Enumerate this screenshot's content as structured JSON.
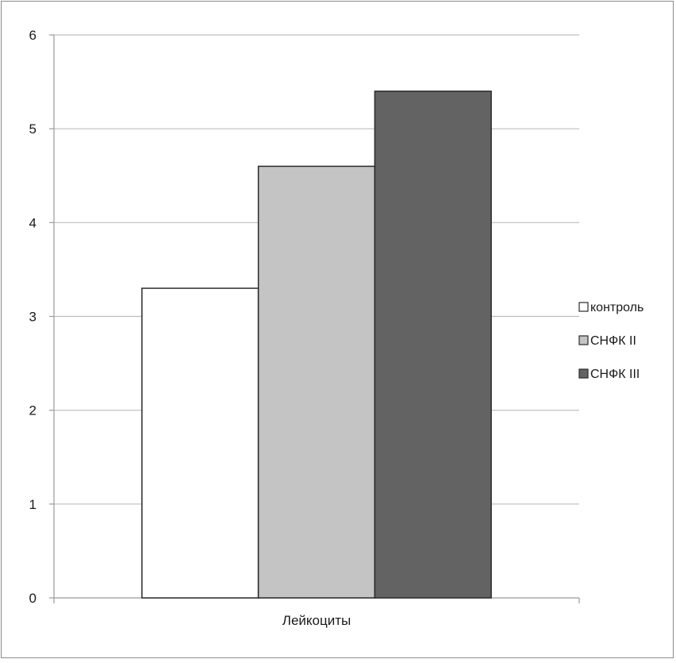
{
  "chart_data": {
    "type": "bar",
    "categories": [
      "Лейкоциты"
    ],
    "series": [
      {
        "name": "контроль",
        "values": [
          3.3
        ],
        "color": "#ffffff"
      },
      {
        "name": "СНФК II",
        "values": [
          4.6
        ],
        "color": "#c4c4c4"
      },
      {
        "name": "СНФК III",
        "values": [
          5.4
        ],
        "color": "#636363"
      }
    ],
    "title": "",
    "xlabel": "",
    "ylabel": "",
    "ylim": [
      0,
      6
    ],
    "yticks": [
      "0",
      "1",
      "2",
      "3",
      "4",
      "5",
      "6"
    ],
    "grid": true,
    "legend_position": "right"
  }
}
